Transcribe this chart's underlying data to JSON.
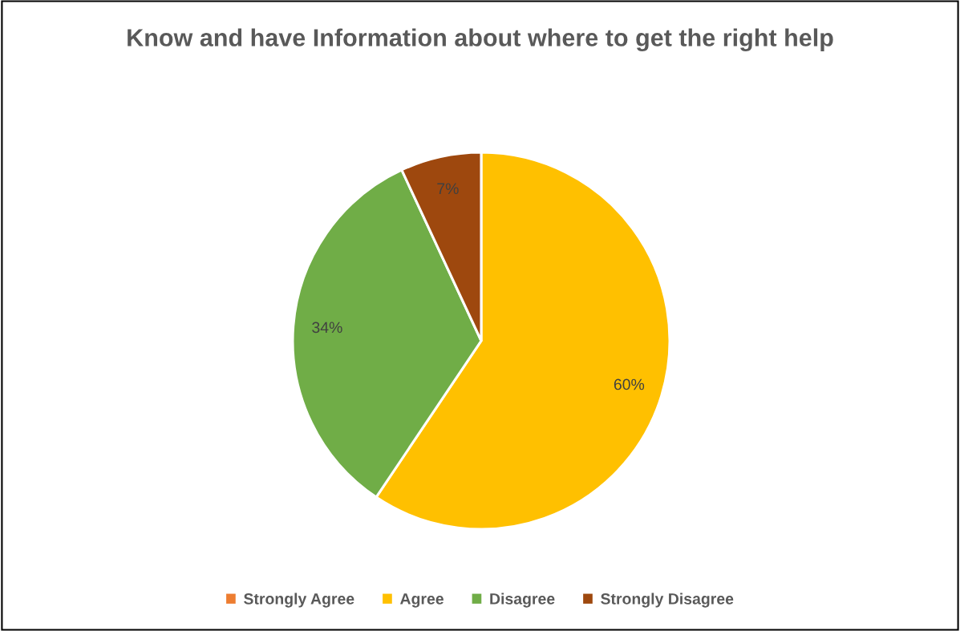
{
  "chart_data": {
    "type": "pie",
    "title": "Know and have Information about where to get the right help",
    "categories": [
      "Strongly Agree",
      "Agree",
      "Disagree",
      "Strongly Disagree"
    ],
    "values": [
      0,
      60,
      34,
      7
    ],
    "colors": [
      "#ed7d31",
      "#ffc000",
      "#70ad47",
      "#9e480e"
    ],
    "value_labels": [
      null,
      "60%",
      "34%",
      "7%"
    ],
    "legend": "bottom"
  }
}
